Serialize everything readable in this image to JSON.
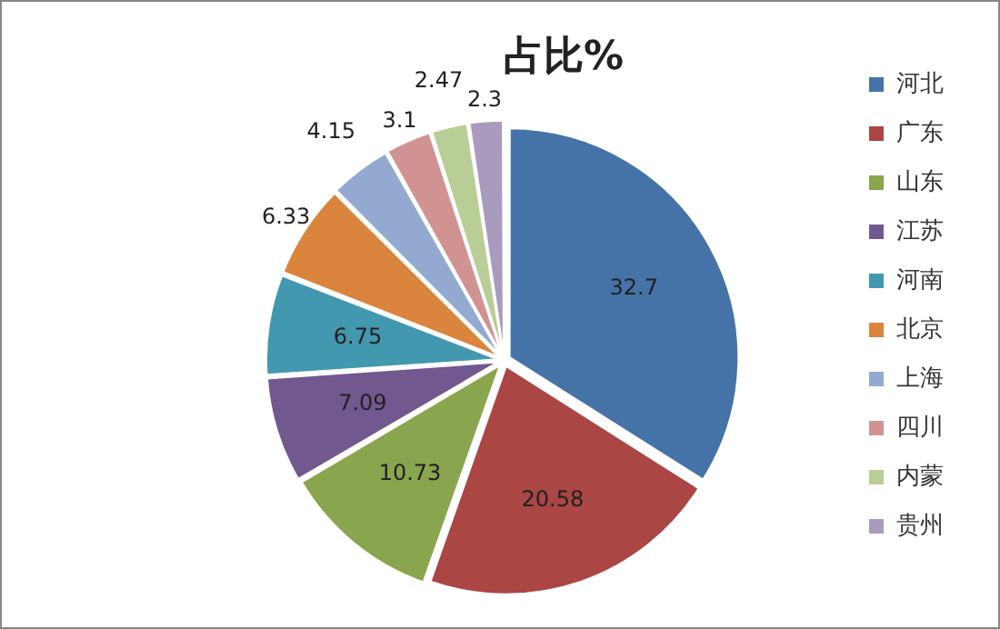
{
  "chart_data": {
    "type": "pie",
    "title": "占比%",
    "categories": [
      "河北",
      "广东",
      "山东",
      "江苏",
      "河南",
      "北京",
      "上海",
      "四川",
      "内蒙",
      "贵州"
    ],
    "values": [
      32.7,
      20.58,
      10.73,
      7.09,
      6.75,
      6.33,
      4.15,
      3.1,
      2.47,
      2.3
    ],
    "colors": [
      "#4573a7",
      "#aa4644",
      "#89a54e",
      "#71588f",
      "#4298af",
      "#db843d",
      "#93a9cf",
      "#d19392",
      "#b9cd96",
      "#a99bbd"
    ],
    "data_labels": true,
    "legend": "right"
  }
}
